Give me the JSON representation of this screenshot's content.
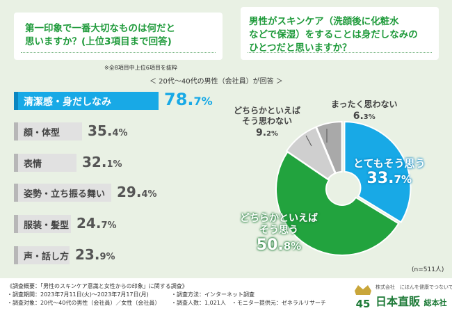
{
  "question_left": {
    "line1": "第一印象で一番大切なものは何だと",
    "line2": "思いますか？(上位3項目まで回答)"
  },
  "question_right": {
    "line1": "男性がスキンケア（洗顔後に化粧水",
    "line2": "などで保湿）をすることは身だしなみの",
    "line3": "ひとつだと思いますか？"
  },
  "note": "※全8項目中上位6項目を抜粋",
  "subtitle": "＜ 20代～40代の男性（会社員）が回答 ＞",
  "sample_size": "(n=511人)",
  "chart_data": [
    {
      "type": "bar",
      "orientation": "horizontal",
      "categories": [
        "清潔感・身だしなみ",
        "顔・体型",
        "表情",
        "姿勢・立ち振る舞い",
        "服装・髪型",
        "声・話し方"
      ],
      "values": [
        78.7,
        35.4,
        32.1,
        29.4,
        24.7,
        23.9
      ],
      "value_labels": [
        {
          "int": "78.",
          "dec": "7%"
        },
        {
          "int": "35.",
          "dec": "4%"
        },
        {
          "int": "32.",
          "dec": "1%"
        },
        {
          "int": "29.",
          "dec": "4%"
        },
        {
          "int": "24.",
          "dec": "7%"
        },
        {
          "int": "23.",
          "dec": "9%"
        }
      ],
      "unit": "%",
      "xlim": [
        0,
        100
      ],
      "colors": {
        "highlight": "#18a9e6",
        "default": "#e1e1e1"
      }
    },
    {
      "type": "pie",
      "style": "donut",
      "labels": [
        "とてもそう思う",
        "どちらかといえばそう思う",
        "どちらかといえばそう思わない",
        "まったく思わない"
      ],
      "label_lines": [
        [
          "とてもそう思う"
        ],
        [
          "どちらかといえば",
          "そう思う"
        ],
        [
          "どちらかといえば",
          "そう思わない"
        ],
        [
          "まったく思わない"
        ]
      ],
      "values": [
        33.7,
        50.8,
        9.2,
        6.3
      ],
      "value_labels": [
        {
          "int": "33.",
          "dec": "7%"
        },
        {
          "int": "50.",
          "dec": "8%"
        },
        {
          "int": "9.",
          "dec": "2%"
        },
        {
          "int": "6.",
          "dec": "3%"
        }
      ],
      "colors": [
        "#18a9e6",
        "#22a33e",
        "#cfcfcf",
        "#a9a9a9"
      ]
    }
  ],
  "footer": {
    "title": "《調査概要：「男性のスキンケア意識と女性からの印象」に関する調査》",
    "period": "・調査期間：2023年7月11日(火)～2023年7月17日(月)",
    "method": "・調査方法：インターネット調査",
    "target": "・調査対象：20代～40代の男性（会社員）／女性（会社員）",
    "count": "・調査人数：1,021人　・モニター提供元：ゼネラルリサーチ"
  },
  "logo": {
    "badge": "45",
    "small": "株式会社　にほんを健康でつないでいく",
    "company": "日本直販",
    "suffix": "総本社"
  }
}
